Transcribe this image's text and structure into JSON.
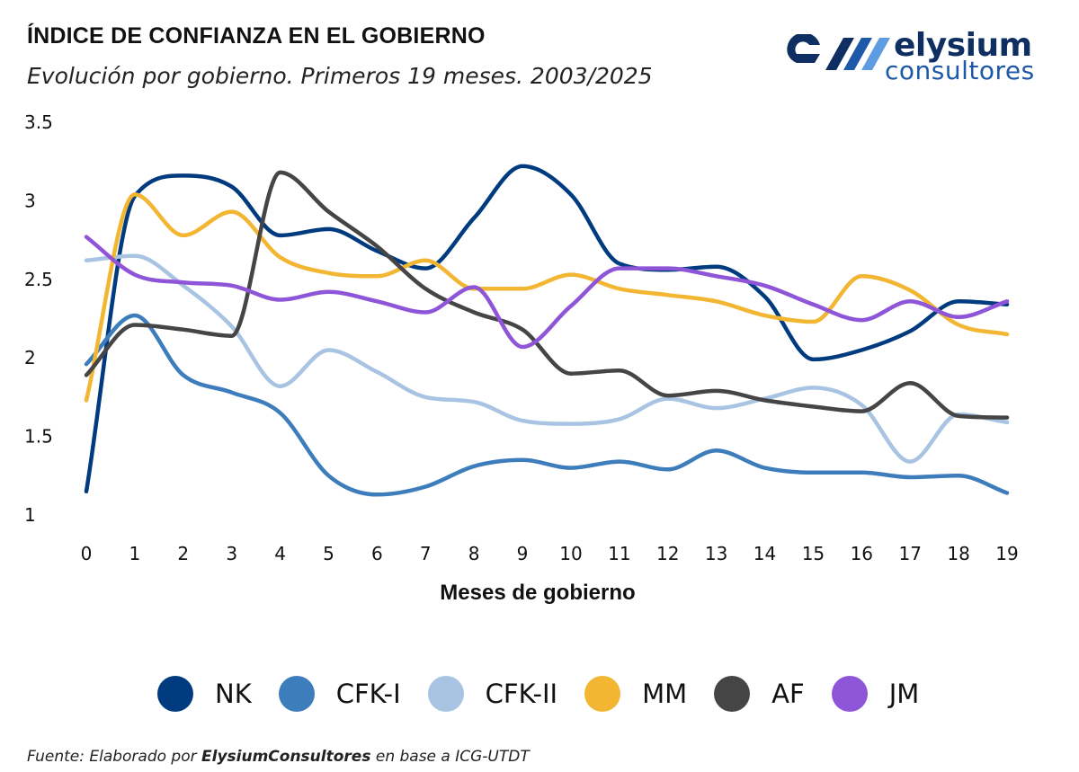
{
  "header": {
    "title": "ÍNDICE DE CONFIANZA EN EL GOBIERNO",
    "subtitle": "Evolución por gobierno. Primeros 19 meses. 2003/2025"
  },
  "logo": {
    "word": "elysium",
    "sub": "consultores",
    "colors": {
      "dark": "#0f2f63",
      "mid": "#1e58a8",
      "light": "#5f9be0"
    }
  },
  "source": {
    "prefix": "Fuente: Elaborado por ",
    "brand": "ElysiumConsultores",
    "suffix": " en base a ICG-UTDT"
  },
  "chart_data": {
    "type": "line",
    "title": "ÍNDICE DE CONFIANZA EN EL GOBIERNO",
    "xlabel": "Meses de gobierno",
    "ylabel": "",
    "x": [
      0,
      1,
      2,
      3,
      4,
      5,
      6,
      7,
      8,
      9,
      10,
      11,
      12,
      13,
      14,
      15,
      16,
      17,
      18,
      19
    ],
    "xtick_labels": [
      "0",
      "1",
      "2",
      "3",
      "4",
      "5",
      "6",
      "7",
      "8",
      "9",
      "10",
      "11",
      "12",
      "13",
      "14",
      "15",
      "16",
      "17",
      "18",
      "19"
    ],
    "ylim": [
      1,
      3.5
    ],
    "yticks": [
      1,
      1.5,
      2,
      2.5,
      3,
      3.5
    ],
    "ytick_labels": [
      "1",
      "1.5",
      "2",
      "2.5",
      "3",
      "3.5"
    ],
    "grid": false,
    "legend_position": "bottom",
    "series": [
      {
        "name": "NK",
        "color": "#003b7f",
        "values": [
          1.15,
          3.03,
          3.16,
          3.09,
          2.78,
          2.82,
          2.68,
          2.57,
          2.89,
          3.22,
          3.04,
          2.6,
          2.56,
          2.58,
          2.39,
          1.99,
          2.05,
          2.17,
          2.36,
          2.34
        ]
      },
      {
        "name": "CFK-I",
        "color": "#3e7dbb",
        "values": [
          1.96,
          2.27,
          1.89,
          1.78,
          1.65,
          1.25,
          1.13,
          1.18,
          1.31,
          1.35,
          1.3,
          1.34,
          1.29,
          1.41,
          1.3,
          1.27,
          1.27,
          1.24,
          1.25,
          1.14
        ]
      },
      {
        "name": "CFK-II",
        "color": "#a8c4e2",
        "values": [
          2.62,
          2.65,
          2.46,
          2.2,
          1.82,
          2.05,
          1.91,
          1.75,
          1.72,
          1.6,
          1.58,
          1.61,
          1.74,
          1.68,
          1.74,
          1.81,
          1.7,
          1.34,
          1.64,
          1.59
        ]
      },
      {
        "name": "MM",
        "color": "#f2b632",
        "values": [
          1.73,
          3.04,
          2.78,
          2.93,
          2.64,
          2.54,
          2.52,
          2.62,
          2.44,
          2.44,
          2.53,
          2.44,
          2.4,
          2.36,
          2.27,
          2.23,
          2.52,
          2.43,
          2.21,
          2.15
        ]
      },
      {
        "name": "AF",
        "color": "#454545",
        "values": [
          1.89,
          2.21,
          2.18,
          2.14,
          3.18,
          2.93,
          2.71,
          2.44,
          2.29,
          2.18,
          1.9,
          1.92,
          1.76,
          1.79,
          1.73,
          1.69,
          1.66,
          1.84,
          1.63,
          1.62
        ]
      },
      {
        "name": "JM",
        "color": "#8f55d8",
        "values": [
          2.77,
          2.53,
          2.48,
          2.46,
          2.37,
          2.42,
          2.36,
          2.29,
          2.45,
          2.07,
          2.33,
          2.57,
          2.57,
          2.52,
          2.46,
          2.34,
          2.24,
          2.36,
          2.26,
          2.36
        ]
      }
    ]
  }
}
